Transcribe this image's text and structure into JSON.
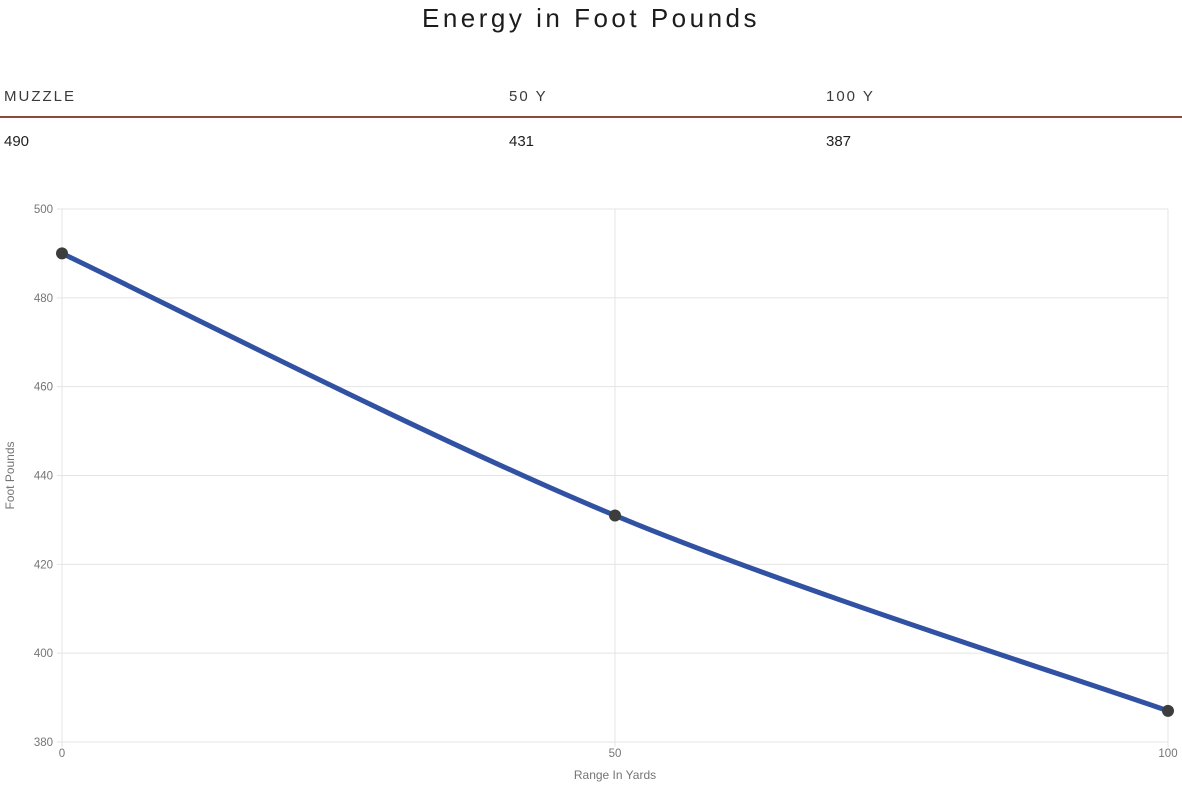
{
  "title": "Energy in Foot Pounds",
  "table": {
    "columns": [
      "MUZZLE",
      "50 Y",
      "100 Y"
    ],
    "values": [
      "490",
      "431",
      "387"
    ]
  },
  "chart_data": {
    "type": "line",
    "x": [
      0,
      50,
      100
    ],
    "series": [
      {
        "name": "Energy",
        "values": [
          490,
          431,
          387
        ]
      }
    ],
    "title": "",
    "xlabel": "Range In Yards",
    "ylabel": "Foot Pounds",
    "xlim": [
      0,
      100
    ],
    "ylim": [
      380,
      500
    ],
    "ytick_step": 20,
    "xticks": [
      0,
      50,
      100
    ],
    "grid": true,
    "legend": false,
    "smooth": true
  },
  "colors": {
    "line": "#3151a2",
    "marker": "#3d3d3d",
    "divider": "#8c4a40",
    "grid": "#e4e4e4",
    "tick_label": "#757575",
    "title_text": "#1c1c1c"
  }
}
